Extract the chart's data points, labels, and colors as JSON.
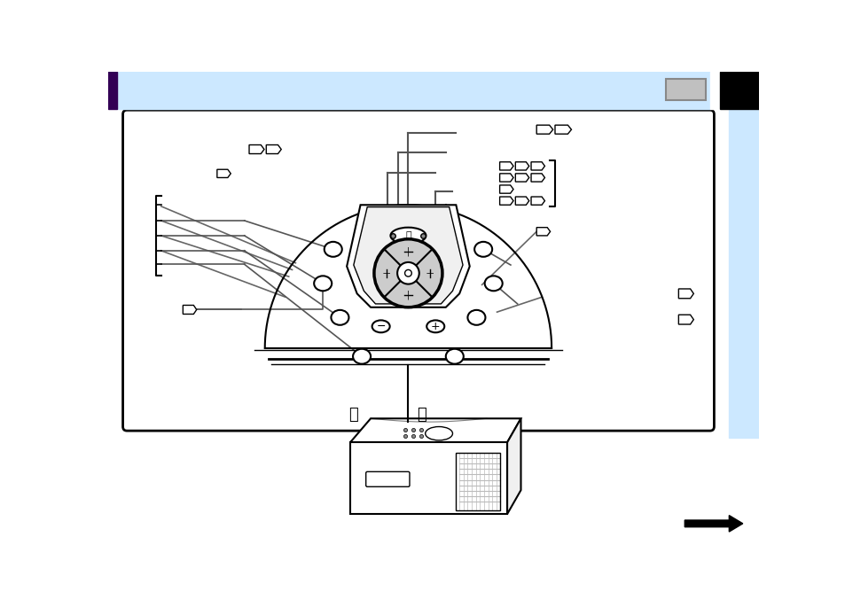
{
  "bg_color": "#ffffff",
  "header_color": "#cce8ff",
  "header_dark_left": "#330055",
  "header_dark_right": "#000000",
  "right_panel_color": "#cce8ff",
  "gray_box_color": "#aaaaaa",
  "line_color": "#555555",
  "black": "#000000"
}
